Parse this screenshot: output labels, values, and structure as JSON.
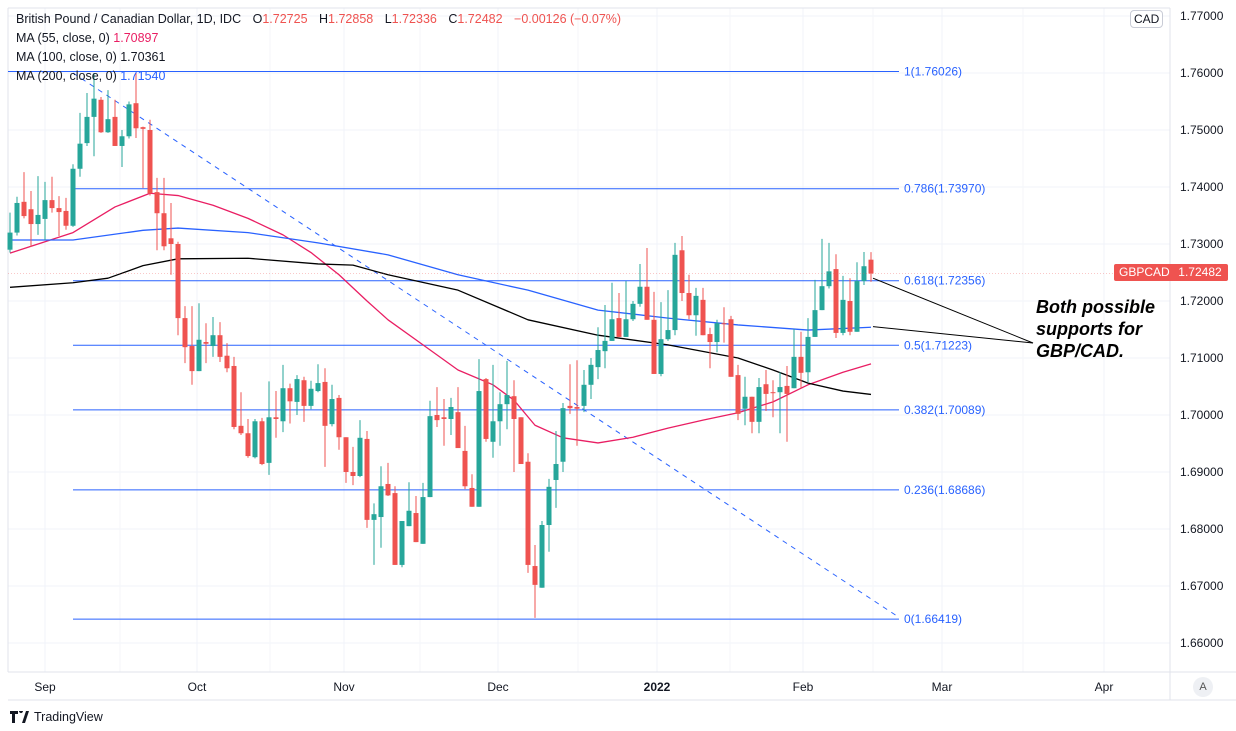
{
  "header": {
    "title": "British Pound / Canadian Dollar, 1D, IDC",
    "ohlc": {
      "o_label": "O",
      "o": "1.72725",
      "h_label": "H",
      "h": "1.72858",
      "l_label": "L",
      "l": "1.72336",
      "c_label": "C",
      "c": "1.72482",
      "change": "−0.00126 (−0.07%)"
    },
    "indicators": [
      {
        "label": "MA (55, close, 0)",
        "value": "1.70897",
        "color": "#e91e63"
      },
      {
        "label": "MA (100, close, 0)",
        "value": "1.70361",
        "color": "#000000"
      },
      {
        "label": "MA (200, close, 0)",
        "value": "1.71540",
        "color": "#2962ff"
      }
    ]
  },
  "currency_badge": "CAD",
  "price_tag": {
    "symbol": "GBPCAD",
    "price": "1.72482",
    "color": "#ef5350"
  },
  "annotation": "Both possible supports for GBP/CAD.",
  "auto_scale_label": "A",
  "footer": {
    "brand": "TradingView"
  },
  "colors": {
    "up": "#26a69a",
    "down": "#ef5350",
    "fib": "#2962ff",
    "grid": "#f0f3fa"
  },
  "chart_data": {
    "type": "candlestick",
    "symbol": "GBPCAD",
    "ylim": [
      1.655,
      1.77
    ],
    "y_ticks": [
      "1.77000",
      "1.76000",
      "1.75000",
      "1.74000",
      "1.73000",
      "1.72000",
      "1.71000",
      "1.70000",
      "1.69000",
      "1.68000",
      "1.67000",
      "1.66000"
    ],
    "x_ticks": [
      "Sep",
      "Oct",
      "Nov",
      "Dec",
      "2022",
      "Feb",
      "Mar",
      "Apr"
    ],
    "grid": true,
    "ohlc": [
      [
        1.729,
        1.7355,
        1.7285,
        1.732
      ],
      [
        1.732,
        1.7383,
        1.7315,
        1.7372
      ],
      [
        1.7374,
        1.7426,
        1.7345,
        1.7349
      ],
      [
        1.7361,
        1.7393,
        1.7295,
        1.7335
      ],
      [
        1.7335,
        1.7419,
        1.7316,
        1.7351
      ],
      [
        1.7344,
        1.7409,
        1.7307,
        1.7377
      ],
      [
        1.7377,
        1.7418,
        1.7355,
        1.7363
      ],
      [
        1.7363,
        1.7384,
        1.7314,
        1.7356
      ],
      [
        1.7358,
        1.7381,
        1.7325,
        1.7332
      ],
      [
        1.7332,
        1.744,
        1.733,
        1.7432
      ],
      [
        1.7432,
        1.753,
        1.7418,
        1.7476
      ],
      [
        1.7477,
        1.7565,
        1.7472,
        1.7523
      ],
      [
        1.7523,
        1.76,
        1.7454,
        1.7555
      ],
      [
        1.7553,
        1.7558,
        1.7495,
        1.7496
      ],
      [
        1.7496,
        1.757,
        1.7495,
        1.7519
      ],
      [
        1.7523,
        1.7553,
        1.7472,
        1.7472
      ],
      [
        1.7472,
        1.75,
        1.7435,
        1.7489
      ],
      [
        1.7489,
        1.755,
        1.7485,
        1.7545
      ],
      [
        1.7547,
        1.76,
        1.7486,
        1.7503
      ],
      [
        1.7505,
        1.7506,
        1.7398,
        1.7502
      ],
      [
        1.75,
        1.7518,
        1.7385,
        1.7389
      ],
      [
        1.7391,
        1.7416,
        1.7289,
        1.7354
      ],
      [
        1.7354,
        1.7416,
        1.7289,
        1.7296
      ],
      [
        1.731,
        1.7372,
        1.7246,
        1.73
      ],
      [
        1.73,
        1.7304,
        1.714,
        1.717
      ],
      [
        1.717,
        1.7191,
        1.7091,
        1.7119
      ],
      [
        1.7121,
        1.7191,
        1.7053,
        1.7077
      ],
      [
        1.7077,
        1.7196,
        1.7077,
        1.7132
      ],
      [
        1.7128,
        1.7161,
        1.7091,
        1.7125
      ],
      [
        1.7121,
        1.7172,
        1.7102,
        1.714
      ],
      [
        1.714,
        1.7163,
        1.7093,
        1.7102
      ],
      [
        1.7104,
        1.7126,
        1.7075,
        1.7082
      ],
      [
        1.7086,
        1.7102,
        1.6975,
        1.6979
      ],
      [
        1.6981,
        1.704,
        1.6965,
        1.6968
      ],
      [
        1.6968,
        1.6993,
        1.6925,
        1.6928
      ],
      [
        1.6926,
        1.6993,
        1.6924,
        1.6989
      ],
      [
        1.6989,
        1.6995,
        1.6912,
        1.6914
      ],
      [
        1.6916,
        1.7059,
        1.6895,
        1.6996
      ],
      [
        1.6996,
        1.7042,
        1.696,
        1.6993
      ],
      [
        1.6989,
        1.7088,
        1.697,
        1.7047
      ],
      [
        1.7047,
        1.7055,
        1.6985,
        1.7024
      ],
      [
        1.7023,
        1.707,
        1.7,
        1.7063
      ],
      [
        1.7061,
        1.7067,
        1.6988,
        1.7016
      ],
      [
        1.7016,
        1.706,
        1.701,
        1.7046
      ],
      [
        1.7042,
        1.7089,
        1.704,
        1.7056
      ],
      [
        1.7058,
        1.7082,
        1.6909,
        1.6981
      ],
      [
        1.6984,
        1.7053,
        1.698,
        1.7028
      ],
      [
        1.703,
        1.7035,
        1.6939,
        1.6961
      ],
      [
        1.6961,
        1.6961,
        1.6881,
        1.69
      ],
      [
        1.69,
        1.6944,
        1.6877,
        1.6893
      ],
      [
        1.6893,
        1.6991,
        1.6891,
        1.696
      ],
      [
        1.6958,
        1.6972,
        1.6802,
        1.6816
      ],
      [
        1.6816,
        1.6845,
        1.6737,
        1.6826
      ],
      [
        1.6821,
        1.691,
        1.6767,
        1.6875
      ],
      [
        1.6879,
        1.6916,
        1.6858,
        1.6859
      ],
      [
        1.6863,
        1.6875,
        1.6737,
        1.6737
      ],
      [
        1.6737,
        1.6814,
        1.6733,
        1.6814
      ],
      [
        1.6805,
        1.6882,
        1.6805,
        1.6832
      ],
      [
        1.6828,
        1.6858,
        1.6777,
        1.6777
      ],
      [
        1.6774,
        1.6881,
        1.6774,
        1.6856
      ],
      [
        1.6856,
        1.7025,
        1.6856,
        1.6998
      ],
      [
        1.7,
        1.7049,
        1.6979,
        1.6991
      ],
      [
        1.6996,
        1.7028,
        1.6946,
        1.6993
      ],
      [
        1.6993,
        1.703,
        1.6965,
        1.7014
      ],
      [
        1.7005,
        1.7049,
        1.6942,
        1.6942
      ],
      [
        1.6937,
        1.6981,
        1.687,
        1.6875
      ],
      [
        1.6872,
        1.6896,
        1.6839,
        1.6839
      ],
      [
        1.6839,
        1.7098,
        1.6839,
        1.7042
      ],
      [
        1.7063,
        1.7065,
        1.6953,
        1.6958
      ],
      [
        1.6953,
        1.7088,
        1.6925,
        1.6989
      ],
      [
        1.6989,
        1.704,
        1.6946,
        1.7019
      ],
      [
        1.7019,
        1.7095,
        1.6975,
        1.7035
      ],
      [
        1.7033,
        1.7061,
        1.69,
        1.6993
      ],
      [
        1.6996,
        1.6996,
        1.6914,
        1.6914
      ],
      [
        1.6918,
        1.6933,
        1.6723,
        1.6737
      ],
      [
        1.6735,
        1.6772,
        1.6644,
        1.6702
      ],
      [
        1.6697,
        1.6814,
        1.6697,
        1.6807
      ],
      [
        1.6807,
        1.6888,
        1.676,
        1.6874
      ],
      [
        1.6886,
        1.6972,
        1.6837,
        1.6914
      ],
      [
        1.6918,
        1.7021,
        1.69,
        1.7012
      ],
      [
        1.7016,
        1.7089,
        1.7002,
        1.7012
      ],
      [
        1.7014,
        1.7096,
        1.6946,
        1.7011
      ],
      [
        1.7016,
        1.7079,
        1.7005,
        1.7053
      ],
      [
        1.7053,
        1.71,
        1.7028,
        1.7088
      ],
      [
        1.7084,
        1.7154,
        1.7063,
        1.7114
      ],
      [
        1.7112,
        1.7193,
        1.7082,
        1.713
      ],
      [
        1.713,
        1.7232,
        1.713,
        1.7168
      ],
      [
        1.717,
        1.7214,
        1.7137,
        1.7137
      ],
      [
        1.7137,
        1.7235,
        1.7137,
        1.7168
      ],
      [
        1.7168,
        1.72,
        1.7165,
        1.7195
      ],
      [
        1.7195,
        1.7265,
        1.719,
        1.7225
      ],
      [
        1.7225,
        1.7293,
        1.7167,
        1.7167
      ],
      [
        1.7167,
        1.7216,
        1.7072,
        1.7072
      ],
      [
        1.7072,
        1.7198,
        1.7068,
        1.7133
      ],
      [
        1.7133,
        1.7219,
        1.713,
        1.7149
      ],
      [
        1.7149,
        1.7302,
        1.714,
        1.7281
      ],
      [
        1.7289,
        1.7314,
        1.72,
        1.7214
      ],
      [
        1.7214,
        1.7246,
        1.7168,
        1.7175
      ],
      [
        1.7175,
        1.7223,
        1.7139,
        1.7209
      ],
      [
        1.7202,
        1.7223,
        1.714,
        1.714
      ],
      [
        1.7142,
        1.7153,
        1.7082,
        1.7128
      ],
      [
        1.7128,
        1.7167,
        1.711,
        1.7161
      ],
      [
        1.7161,
        1.7189,
        1.7127,
        1.716
      ],
      [
        1.7168,
        1.7174,
        1.7067,
        1.7067
      ],
      [
        1.707,
        1.7088,
        1.6991,
        1.7002
      ],
      [
        1.7011,
        1.7067,
        1.6982,
        1.7032
      ],
      [
        1.7032,
        1.7032,
        1.6968,
        1.6988
      ],
      [
        1.6988,
        1.7065,
        1.6968,
        1.7049
      ],
      [
        1.7054,
        1.7079,
        1.7007,
        1.7037
      ],
      [
        1.704,
        1.7061,
        1.6996,
        1.7039
      ],
      [
        1.704,
        1.7075,
        1.6968,
        1.7049
      ],
      [
        1.7051,
        1.7086,
        1.6953,
        1.7037
      ],
      [
        1.7047,
        1.7151,
        1.7047,
        1.7102
      ],
      [
        1.7102,
        1.7146,
        1.7047,
        1.7074
      ],
      [
        1.7075,
        1.717,
        1.7058,
        1.7137
      ],
      [
        1.7137,
        1.7237,
        1.7137,
        1.7184
      ],
      [
        1.7184,
        1.7309,
        1.7184,
        1.7226
      ],
      [
        1.7226,
        1.7302,
        1.7222,
        1.7252
      ],
      [
        1.7256,
        1.7282,
        1.7135,
        1.7144
      ],
      [
        1.7144,
        1.7244,
        1.714,
        1.7202
      ],
      [
        1.72,
        1.724,
        1.714,
        1.7146
      ],
      [
        1.7146,
        1.7268,
        1.7146,
        1.7235
      ],
      [
        1.7235,
        1.7286,
        1.7228,
        1.7261
      ],
      [
        1.72725,
        1.72858,
        1.72336,
        1.72482
      ]
    ],
    "moving_averages": [
      {
        "name": "MA (55, close, 0)",
        "color": "#e91e63",
        "points": [
          [
            1,
            1.7284
          ],
          [
            10,
            1.732
          ],
          [
            16,
            1.7365
          ],
          [
            21,
            1.7389
          ],
          [
            25,
            1.7385
          ],
          [
            30,
            1.7368
          ],
          [
            35,
            1.7345
          ],
          [
            40,
            1.7316
          ],
          [
            44,
            1.7285
          ],
          [
            48,
            1.7246
          ],
          [
            52,
            1.72
          ],
          [
            55,
            1.7167
          ],
          [
            60,
            1.7123
          ],
          [
            65,
            1.7079
          ],
          [
            70,
            1.7053
          ],
          [
            73,
            1.7026
          ],
          [
            76,
            1.6982
          ],
          [
            80,
            1.696
          ],
          [
            85,
            1.6951
          ],
          [
            90,
            1.6961
          ],
          [
            95,
            1.6977
          ],
          [
            100,
            1.6991
          ],
          [
            105,
            1.7004
          ],
          [
            110,
            1.7023
          ],
          [
            115,
            1.7053
          ],
          [
            120,
            1.7075
          ],
          [
            124,
            1.70897
          ]
        ]
      },
      {
        "name": "MA (100, close, 0)",
        "color": "#000000",
        "points": [
          [
            1,
            1.7224
          ],
          [
            10,
            1.7232
          ],
          [
            15,
            1.724
          ],
          [
            20,
            1.7262
          ],
          [
            25,
            1.7274
          ],
          [
            35,
            1.7275
          ],
          [
            45,
            1.7265
          ],
          [
            50,
            1.7263
          ],
          [
            55,
            1.7246
          ],
          [
            65,
            1.7219
          ],
          [
            75,
            1.7167
          ],
          [
            85,
            1.714
          ],
          [
            95,
            1.7123
          ],
          [
            105,
            1.71
          ],
          [
            110,
            1.7079
          ],
          [
            115,
            1.7056
          ],
          [
            120,
            1.7042
          ],
          [
            124,
            1.70361
          ]
        ]
      },
      {
        "name": "MA (200, close, 0)",
        "color": "#2962ff",
        "points": [
          [
            1,
            1.7307
          ],
          [
            10,
            1.7307
          ],
          [
            20,
            1.7324
          ],
          [
            25,
            1.7328
          ],
          [
            35,
            1.732
          ],
          [
            45,
            1.7302
          ],
          [
            55,
            1.7281
          ],
          [
            65,
            1.7246
          ],
          [
            75,
            1.7219
          ],
          [
            85,
            1.7184
          ],
          [
            95,
            1.717
          ],
          [
            105,
            1.7158
          ],
          [
            115,
            1.7149
          ],
          [
            124,
            1.7154
          ]
        ]
      }
    ],
    "fib_retracement": {
      "start_candle": 10,
      "end_candle": 128,
      "levels": [
        {
          "ratio": "1",
          "price": "1.76026"
        },
        {
          "ratio": "0.786",
          "price": "1.73970"
        },
        {
          "ratio": "0.618",
          "price": "1.72356"
        },
        {
          "ratio": "0.5",
          "price": "1.71223"
        },
        {
          "ratio": "0.382",
          "price": "1.70089"
        },
        {
          "ratio": "0.236",
          "price": "1.68686"
        },
        {
          "ratio": "0",
          "price": "1.66419"
        }
      ]
    },
    "trendline": {
      "style": "dashed",
      "from": [
        10,
        1.76
      ],
      "to": [
        128,
        1.6645
      ]
    },
    "annotation_pointers": [
      {
        "from": [
          124,
          1.724
        ],
        "to_label": true
      },
      {
        "from": [
          124,
          1.7155
        ],
        "to_label": true
      }
    ]
  }
}
